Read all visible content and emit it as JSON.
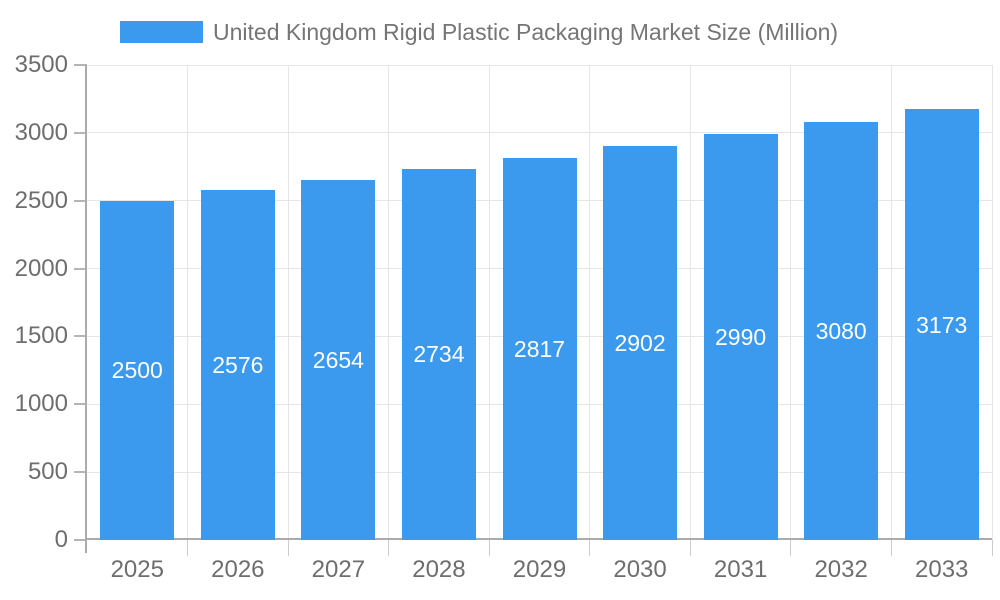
{
  "chart_data": {
    "type": "bar",
    "title": "United Kingdom Rigid Plastic Packaging Market Size (Million)",
    "categories": [
      "2025",
      "2026",
      "2027",
      "2028",
      "2029",
      "2030",
      "2031",
      "2032",
      "2033"
    ],
    "series": [
      {
        "name": "United Kingdom Rigid Plastic Packaging Market Size (Million)",
        "values": [
          2500,
          2576,
          2654,
          2734,
          2817,
          2902,
          2990,
          3080,
          3173
        ]
      }
    ],
    "bar_value_labels": [
      "2500",
      "2576",
      "2654",
      "2734",
      "2817",
      "2902",
      "2990",
      "3080",
      "3173"
    ],
    "xlabel": "",
    "ylabel": "",
    "ylim": [
      0,
      3500
    ],
    "yticks": [
      0,
      500,
      1000,
      1500,
      2000,
      2500,
      3000,
      3500
    ],
    "grid": true,
    "legend_position": "top"
  },
  "legend": {
    "label": "United Kingdom Rigid Plastic Packaging Market Size (Million)"
  },
  "colors": {
    "bar": "#3B99EE",
    "grid": "#E6E6E6",
    "axis": "#ABABAB",
    "tick_y": "#B5B5B5",
    "tick_x": "#CCCCCC",
    "axis_label_text": "#6E6E6E",
    "legend_text": "#757575",
    "value_label_text": "#FFFFFF",
    "background": "#FFFFFF"
  }
}
